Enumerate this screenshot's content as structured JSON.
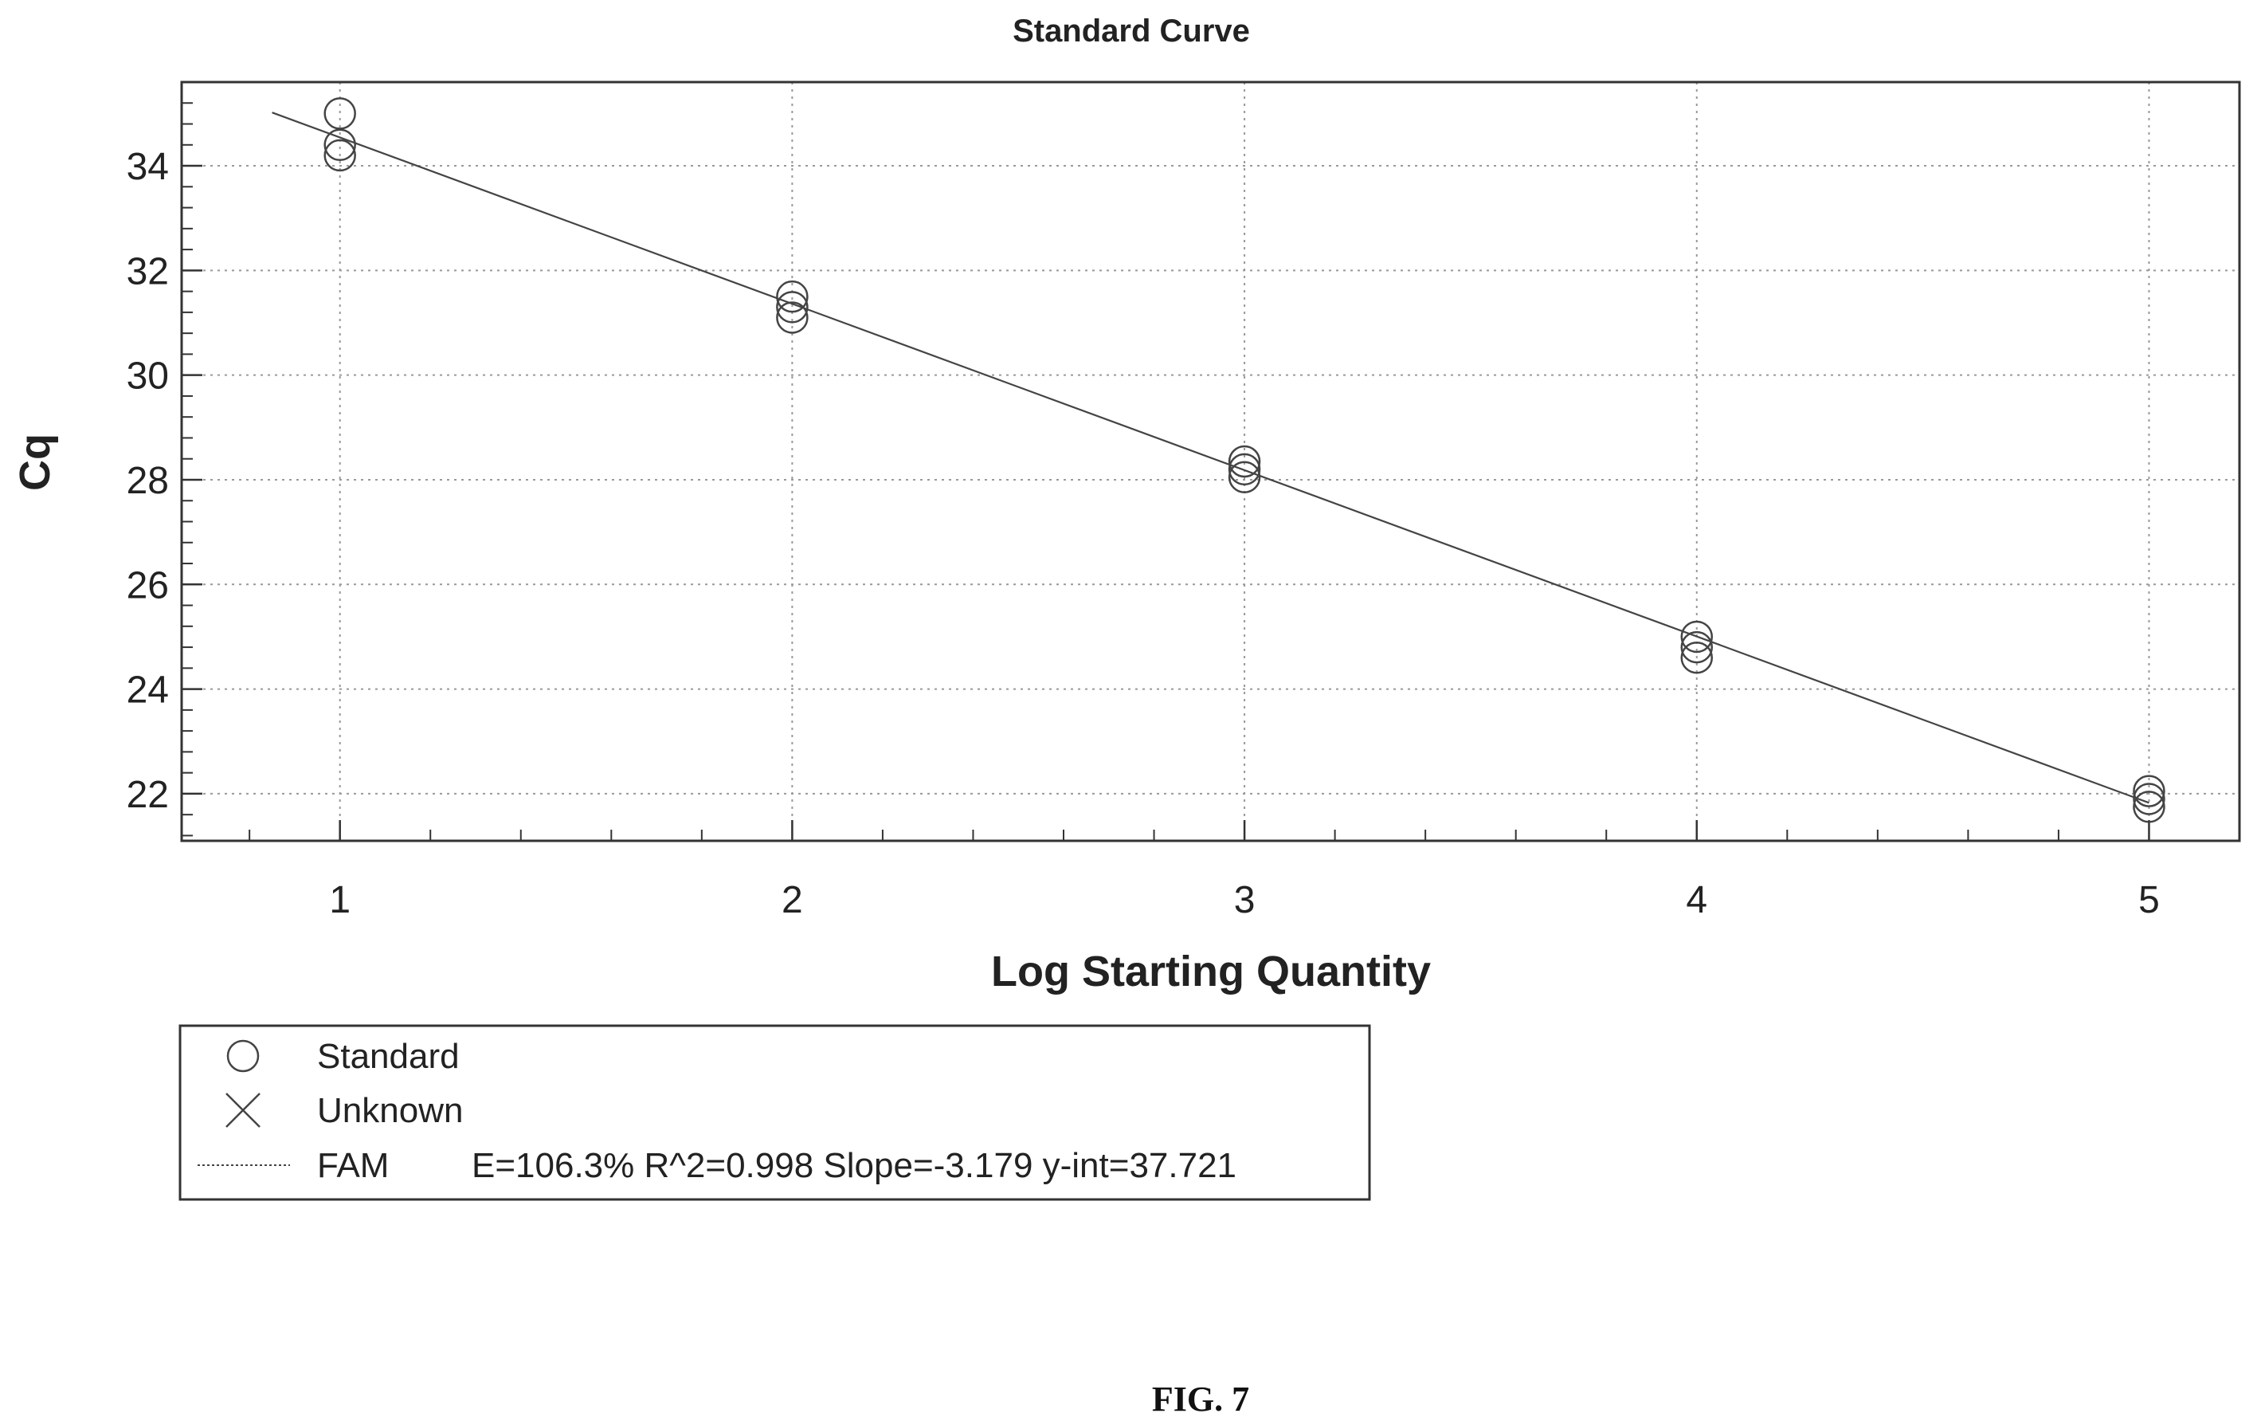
{
  "chart_data": {
    "type": "scatter",
    "title": "Standard Curve",
    "xlabel": "Log Starting Quantity",
    "ylabel": "Cq",
    "xlim": [
      0.65,
      5.2
    ],
    "ylim": [
      21.1,
      35.6
    ],
    "x_ticks": [
      1,
      2,
      3,
      4,
      5
    ],
    "y_ticks": [
      22,
      24,
      26,
      28,
      30,
      32,
      34
    ],
    "x_minor_step": 0.2,
    "y_minor_step": 0.4,
    "grid": true,
    "series": [
      {
        "name": "Standard",
        "marker": "circle",
        "points": [
          [
            1,
            35.0
          ],
          [
            1,
            34.4
          ],
          [
            1,
            34.2
          ],
          [
            2,
            31.5
          ],
          [
            2,
            31.3
          ],
          [
            2,
            31.1
          ],
          [
            3,
            28.35
          ],
          [
            3,
            28.2
          ],
          [
            3,
            28.05
          ],
          [
            4,
            25.0
          ],
          [
            4,
            24.8
          ],
          [
            4,
            24.6
          ],
          [
            5,
            22.05
          ],
          [
            5,
            21.9
          ],
          [
            5,
            21.75
          ]
        ]
      },
      {
        "name": "Unknown",
        "marker": "x",
        "points": []
      }
    ],
    "fit": {
      "name": "FAM",
      "slope": -3.179,
      "intercept": 37.721,
      "x_range": [
        0.85,
        5.0
      ],
      "label": "E=106.3% R^2=0.998 Slope=-3.179 y-int=37.721"
    },
    "legend_position": "bottom-left",
    "colors": {
      "line": "#444444",
      "marker": "#444444",
      "grid": "#999999"
    }
  },
  "figure_label": "FIG. 7"
}
